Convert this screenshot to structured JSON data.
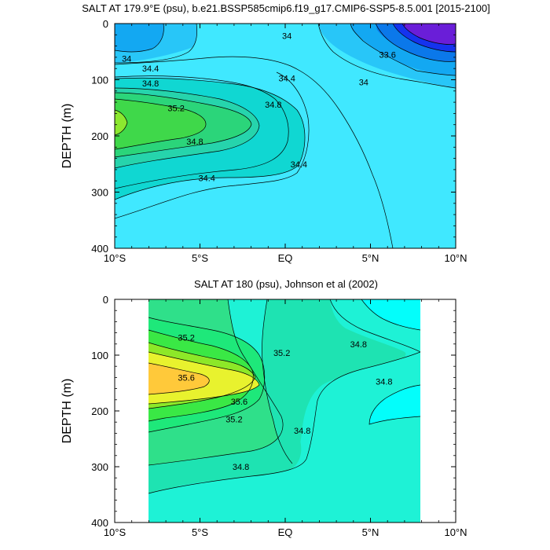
{
  "chart_data": [
    {
      "type": "contour",
      "title": "SALT AT 179.9°E (psu), b.e21.BSSP585cmip6.f19_g17.CMIP6-SSP5-8.5.001 [2015-2100]",
      "ylabel": "DEPTH (m)",
      "xlabel": "",
      "x_ticks": [
        "10°S",
        "5°S",
        "EQ",
        "5°N",
        "10°N"
      ],
      "y_ticks": [
        "0",
        "100",
        "200",
        "300",
        "400"
      ],
      "xlim": [
        -10,
        10
      ],
      "ylim": [
        0,
        400
      ],
      "y_inverted": true,
      "grid": false,
      "contour_levels": [
        33.6,
        34,
        34.4,
        34.8,
        35.2
      ],
      "data_extent": {
        "x": [
          -10,
          10
        ],
        "depth": [
          5,
          400
        ]
      },
      "contour_labels": [
        {
          "text": "34",
          "x": 0.1,
          "depth": 22
        },
        {
          "text": "33.6",
          "x": 6.0,
          "depth": 55
        },
        {
          "text": "34",
          "x": -9.3,
          "depth": 62
        },
        {
          "text": "34.4",
          "x": -7.9,
          "depth": 80
        },
        {
          "text": "34.4",
          "x": 0.1,
          "depth": 97
        },
        {
          "text": "34",
          "x": 4.6,
          "depth": 104
        },
        {
          "text": "34.8",
          "x": -7.9,
          "depth": 106
        },
        {
          "text": "35.2",
          "x": -6.4,
          "depth": 150
        },
        {
          "text": "34.8",
          "x": -0.7,
          "depth": 144
        },
        {
          "text": "34.8",
          "x": -5.3,
          "depth": 210
        },
        {
          "text": "34.4",
          "x": 0.8,
          "depth": 250
        },
        {
          "text": "34.4",
          "x": -4.6,
          "depth": 275
        }
      ]
    },
    {
      "type": "contour",
      "title": "SALT AT 180 (psu), Johnson et al (2002)",
      "ylabel": "DEPTH (m)",
      "xlabel": "",
      "x_ticks": [
        "10°S",
        "5°S",
        "EQ",
        "5°N",
        "10°N"
      ],
      "y_ticks": [
        "0",
        "100",
        "200",
        "300",
        "400"
      ],
      "xlim": [
        -10,
        10
      ],
      "ylim": [
        0,
        400
      ],
      "y_inverted": true,
      "grid": false,
      "contour_levels": [
        34.8,
        35.2,
        35.6
      ],
      "data_extent": {
        "x": [
          -8,
          8
        ],
        "depth": [
          5,
          400
        ]
      },
      "contour_labels": [
        {
          "text": "35.2",
          "x": -5.8,
          "depth": 68
        },
        {
          "text": "35.2",
          "x": -0.2,
          "depth": 96
        },
        {
          "text": "34.8",
          "x": 4.3,
          "depth": 80
        },
        {
          "text": "35.6",
          "x": -5.8,
          "depth": 140
        },
        {
          "text": "34.8",
          "x": 5.8,
          "depth": 147
        },
        {
          "text": "35.6",
          "x": -2.7,
          "depth": 183
        },
        {
          "text": "35.2",
          "x": -3.0,
          "depth": 215
        },
        {
          "text": "34.8",
          "x": 1.0,
          "depth": 235
        },
        {
          "text": "34.8",
          "x": -2.6,
          "depth": 300
        }
      ]
    }
  ]
}
